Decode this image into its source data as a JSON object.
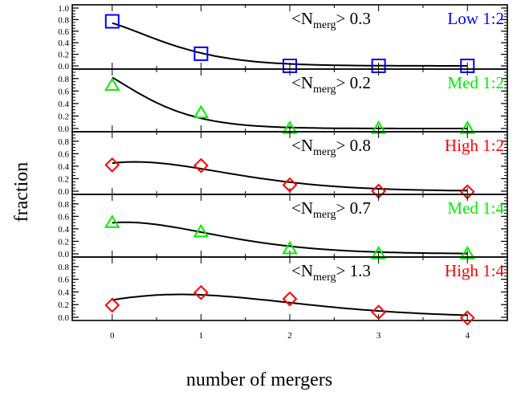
{
  "figure": {
    "ylabel": "fraction",
    "xlabel": "number of mergers"
  },
  "chart_data": [
    {
      "type": "scatter",
      "label_prefix": "<N",
      "label_sub": "merg",
      "label_suffix": "> 0.3",
      "tag": "Low 1:2",
      "color": "#0000ff",
      "marker": "square",
      "x": [
        0,
        1,
        2,
        3,
        4
      ],
      "y": [
        0.77,
        0.21,
        0.0,
        0.0,
        0.0
      ],
      "fit": {
        "type": "poisson",
        "mean": 0.3
      },
      "ylim": [
        0,
        1.0
      ],
      "yticks": [
        "1.0",
        "0.8",
        "0.6",
        "0.4",
        "0.2",
        "0.0"
      ]
    },
    {
      "type": "scatter",
      "label_prefix": "<N",
      "label_sub": "merg",
      "label_suffix": "> 0.2",
      "tag": "Med 1:2",
      "color": "#00ee00",
      "marker": "triangle",
      "x": [
        0,
        1,
        2,
        3,
        4
      ],
      "y": [
        0.69,
        0.25,
        0.0,
        0.0,
        0.0
      ],
      "fit": {
        "type": "poisson",
        "mean": 0.2
      },
      "ylim": [
        0,
        0.9
      ],
      "yticks": [
        "0.8",
        "0.6",
        "0.4",
        "0.2",
        "0.0"
      ]
    },
    {
      "type": "scatter",
      "label_prefix": "<N",
      "label_sub": "merg",
      "label_suffix": "> 0.8",
      "tag": "High 1:2",
      "color": "#ff0000",
      "marker": "diamond",
      "x": [
        0,
        1,
        2,
        3,
        4
      ],
      "y": [
        0.42,
        0.41,
        0.1,
        0.0,
        -0.01
      ],
      "fit": {
        "type": "poisson",
        "mean": 0.8
      },
      "ylim": [
        0,
        0.9
      ],
      "yticks": [
        "0.8",
        "0.6",
        "0.4",
        "0.2",
        "0.0"
      ]
    },
    {
      "type": "scatter",
      "label_prefix": "<N",
      "label_sub": "merg",
      "label_suffix": "> 0.7",
      "tag": "Med 1:4",
      "color": "#00ee00",
      "marker": "triangle",
      "x": [
        0,
        1,
        2,
        3,
        4
      ],
      "y": [
        0.5,
        0.35,
        0.08,
        0.0,
        0.0
      ],
      "fit": {
        "type": "poisson",
        "mean": 0.7
      },
      "ylim": [
        0,
        0.9
      ],
      "yticks": [
        "0.8",
        "0.6",
        "0.4",
        "0.2",
        "0.0"
      ]
    },
    {
      "type": "scatter",
      "label_prefix": "<N",
      "label_sub": "merg",
      "label_suffix": "> 1.3",
      "tag": "High 1:4",
      "color": "#ff0000",
      "marker": "diamond",
      "x": [
        0,
        1,
        2,
        3,
        4
      ],
      "y": [
        0.19,
        0.39,
        0.29,
        0.08,
        -0.01
      ],
      "fit": {
        "type": "poisson",
        "mean": 1.3
      },
      "ylim": [
        0,
        0.9
      ],
      "yticks": [
        "0.8",
        "0.6",
        "0.4",
        "0.2",
        "0.0"
      ]
    }
  ],
  "shared_x": {
    "xlim": [
      -0.45,
      4.45
    ],
    "xticks": [
      "0",
      "1",
      "2",
      "3",
      "4"
    ]
  }
}
